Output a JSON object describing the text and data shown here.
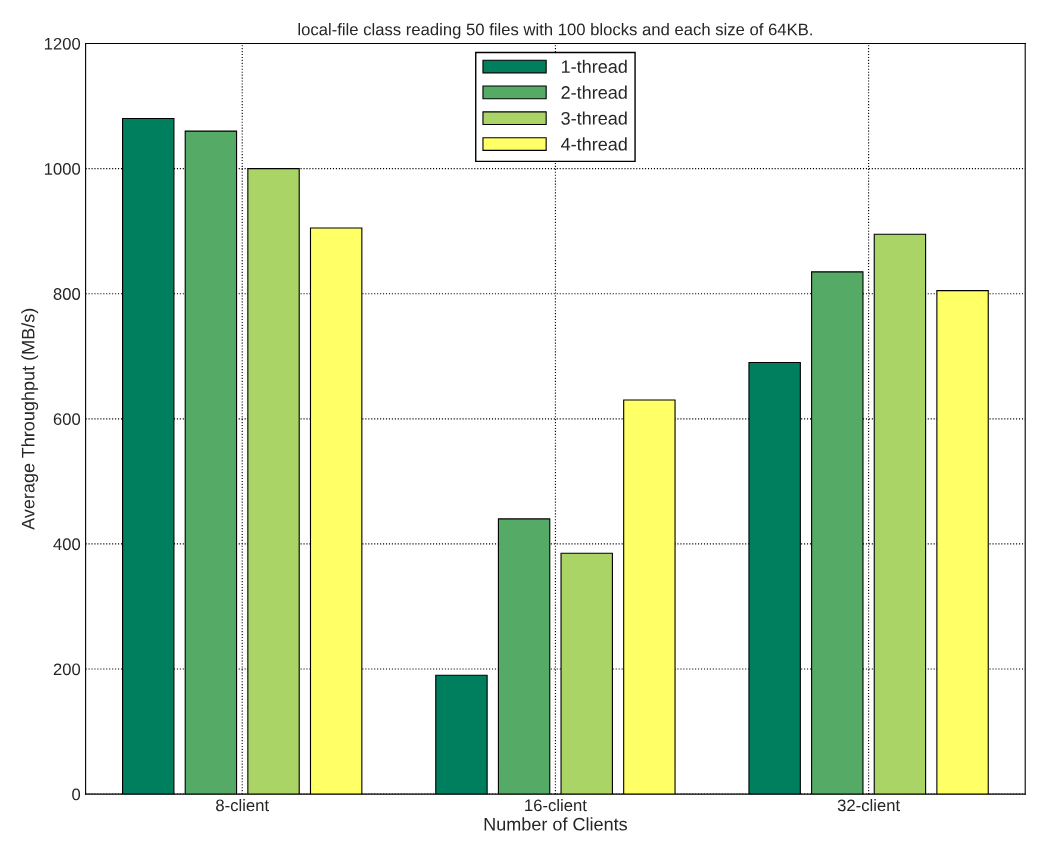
{
  "chart_data": {
    "type": "bar",
    "title": "local-file class reading 50 files with 100 blocks and each size of 64KB.",
    "xlabel": "Number of Clients",
    "ylabel": "Average Throughput (MB/s)",
    "categories": [
      "8-client",
      "16-client",
      "32-client"
    ],
    "series": [
      {
        "name": "1-thread",
        "color": "#007f5f",
        "values": [
          1080,
          190,
          690
        ]
      },
      {
        "name": "2-thread",
        "color": "#55aa66",
        "values": [
          1060,
          440,
          835
        ]
      },
      {
        "name": "3-thread",
        "color": "#aad466",
        "values": [
          1000,
          385,
          895
        ]
      },
      {
        "name": "4-thread",
        "color": "#ffff66",
        "values": [
          905,
          630,
          805
        ]
      }
    ],
    "ylim": [
      0,
      1200
    ],
    "yticks": [
      0,
      200,
      400,
      600,
      800,
      1000,
      1200
    ],
    "grid": true,
    "legend": "top"
  }
}
